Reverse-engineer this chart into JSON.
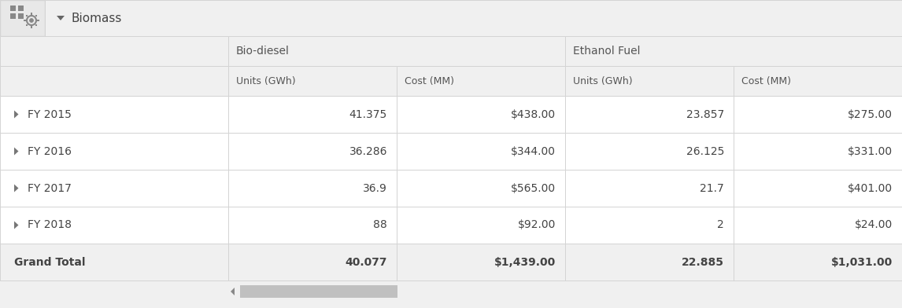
{
  "title_row": "Biomass",
  "col_groups": [
    "Bio-diesel",
    "Ethanol Fuel"
  ],
  "col_headers": [
    "Units (GWh)",
    "Cost (MM)",
    "Units (GWh)",
    "Cost (MM)"
  ],
  "row_labels": [
    "FY 2015",
    "FY 2016",
    "FY 2017",
    "FY 2018",
    "Grand Total"
  ],
  "rows": [
    [
      "41.375",
      "$438.00",
      "23.857",
      "$275.00"
    ],
    [
      "36.286",
      "$344.00",
      "26.125",
      "$331.00"
    ],
    [
      "36.9",
      "$565.00",
      "21.7",
      "$401.00"
    ],
    [
      "88",
      "$92.00",
      "2",
      "$24.00"
    ],
    [
      "40.077",
      "$1,439.00",
      "22.885",
      "$1,031.00"
    ]
  ],
  "bg_color": "#f0f0f0",
  "cell_bg": "#ffffff",
  "border_color": "#d4d4d4",
  "text_color": "#444444",
  "header_text_color": "#555555",
  "group_text_color": "#555555",
  "title_text_color": "#444444",
  "grand_bg": "#f0f0f0",
  "icon_box_bg": "#e8e8e8",
  "scrollbar_thumb": "#c0c0c0",
  "scrollbar_track": "#e8e8e8",
  "arrow_color": "#777777"
}
